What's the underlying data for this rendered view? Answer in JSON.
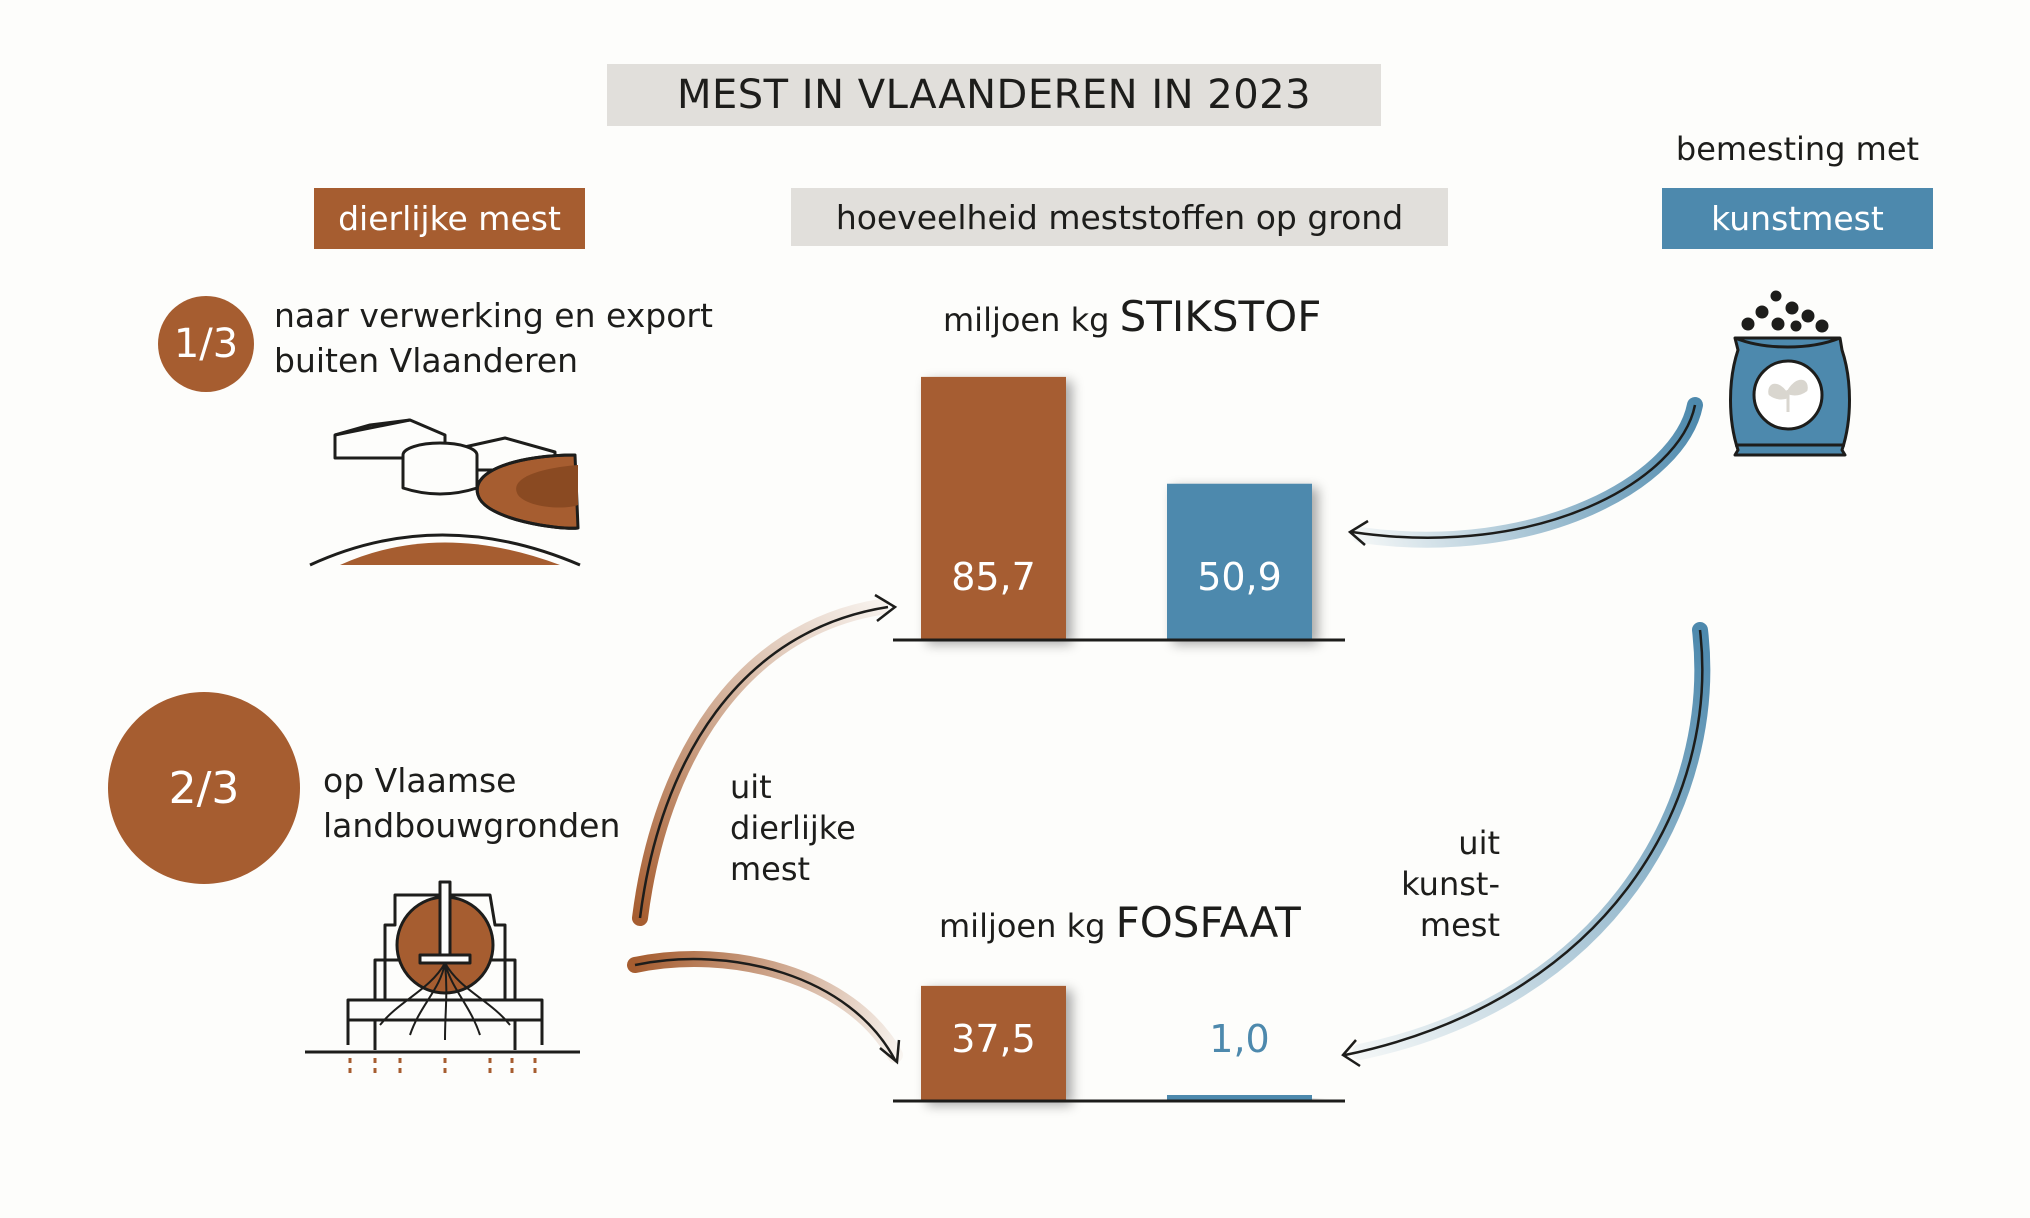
{
  "title": "MEST IN VLAANDEREN IN 2023",
  "headers": {
    "animal": "dierlijke mest",
    "center": "hoeveelheid meststoffen op grond",
    "mineral_prefix": "bemesting met",
    "mineral": "kunstmest"
  },
  "shares": {
    "export": {
      "fraction": "1/3",
      "line1": "naar verwerking en export",
      "line2": "buiten Vlaanderen"
    },
    "land": {
      "fraction": "2/3",
      "line1": "op Vlaamse",
      "line2": "landbouwgronden"
    }
  },
  "flow_labels": {
    "animal": [
      "uit",
      "dierlijke",
      "mest"
    ],
    "mineral": [
      "uit",
      "kunst-",
      "mest"
    ]
  },
  "colors": {
    "animal": "#a65d30",
    "mineral": "#4d89ad",
    "header_grey": "#e1dfdb"
  },
  "icons": [
    "manure-processing-plant-icon",
    "slurry-tanker-icon",
    "fertilizer-bag-icon"
  ],
  "chart_data": [
    {
      "type": "bar",
      "unit_prefix": "miljoen kg",
      "nutrient": "STIKSTOF",
      "categories": [
        "dierlijke mest",
        "kunstmest"
      ],
      "values": [
        85.7,
        50.9
      ],
      "labels": [
        "85,7",
        "50,9"
      ],
      "colors": [
        "#a65d30",
        "#4d89ad"
      ],
      "ylim": [
        0,
        100
      ]
    },
    {
      "type": "bar",
      "unit_prefix": "miljoen kg",
      "nutrient": "FOSFAAT",
      "categories": [
        "dierlijke mest",
        "kunstmest"
      ],
      "values": [
        37.5,
        1.0
      ],
      "labels": [
        "37,5",
        "1,0"
      ],
      "colors": [
        "#a65d30",
        "#4d89ad"
      ],
      "ylim": [
        0,
        100
      ]
    }
  ]
}
